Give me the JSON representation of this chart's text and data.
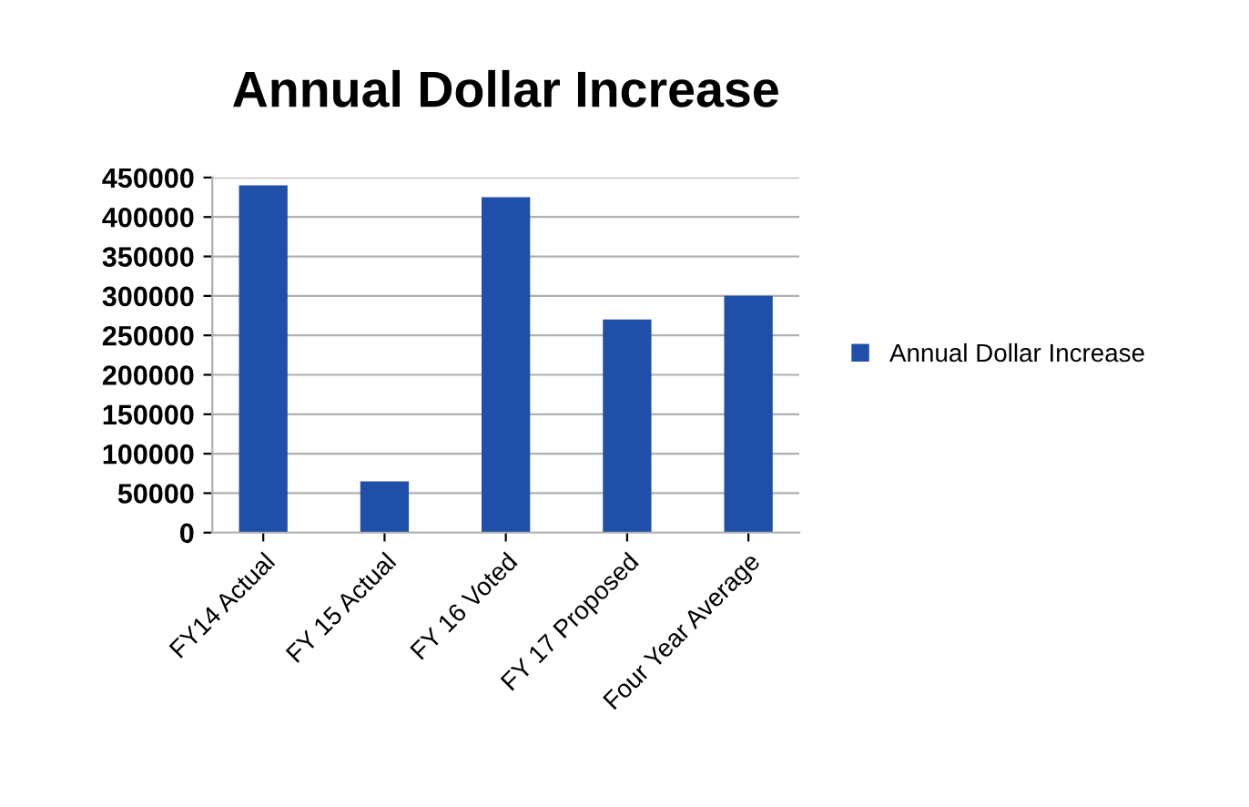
{
  "chart_data": {
    "type": "bar",
    "title": "Annual Dollar Increase",
    "categories": [
      "FY14 Actual",
      "FY 15 Actual",
      "FY 16 Voted",
      "FY 17 Proposed",
      "Four Year Average"
    ],
    "series": [
      {
        "name": "Annual Dollar Increase",
        "color": "#1f4fa8",
        "values": [
          440000,
          65000,
          425000,
          270000,
          300000
        ]
      }
    ],
    "ylim": [
      0,
      450000
    ],
    "yticks": [
      0,
      50000,
      100000,
      150000,
      200000,
      250000,
      300000,
      350000,
      400000,
      450000
    ],
    "grid": "y",
    "legend": "right"
  }
}
